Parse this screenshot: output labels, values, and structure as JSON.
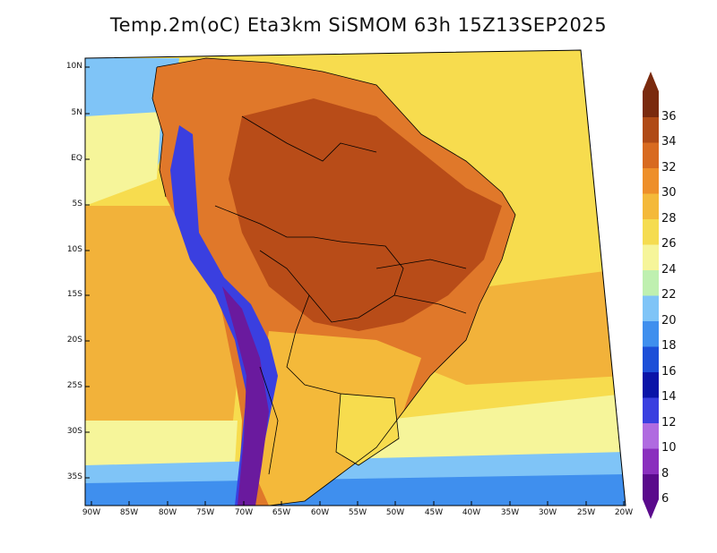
{
  "title": "Temp.2m(oC) Eta3km SiSMOM 63h 15Z13SEP2025",
  "lat_labels": [
    "10N",
    "5N",
    "EQ",
    "5S",
    "10S",
    "15S",
    "20S",
    "25S",
    "30S",
    "35S"
  ],
  "lon_labels": [
    "90W",
    "85W",
    "80W",
    "75W",
    "70W",
    "65W",
    "60W",
    "55W",
    "50W",
    "45W",
    "40W",
    "35W",
    "30W",
    "25W",
    "20W"
  ],
  "colorbar": {
    "labels": [
      "6",
      "8",
      "10",
      "12",
      "14",
      "16",
      "18",
      "20",
      "22",
      "24",
      "26",
      "28",
      "30",
      "32",
      "34",
      "36"
    ],
    "colors": [
      "#5a0a8c",
      "#8a2fbe",
      "#b06be0",
      "#3a3fe0",
      "#0a14a8",
      "#1c4fd8",
      "#3f8fee",
      "#7fc4f7",
      "#bff0b0",
      "#f6f59a",
      "#f5dc50",
      "#f4b93a",
      "#ee8f2a",
      "#d86a20",
      "#b04a16",
      "#7a2a0e"
    ]
  },
  "map_colors": {
    "ocean_warm": "#f2b23a",
    "ocean_mild": "#f7dc4e",
    "ocean_cool": "#f6f59a",
    "ocean_cold": "#7fc4f7",
    "land_hot": "#b84c18",
    "land_warm": "#e0782a",
    "andes_cold": "#3a3fe0",
    "andes_very_cold": "#6a1a9e"
  }
}
